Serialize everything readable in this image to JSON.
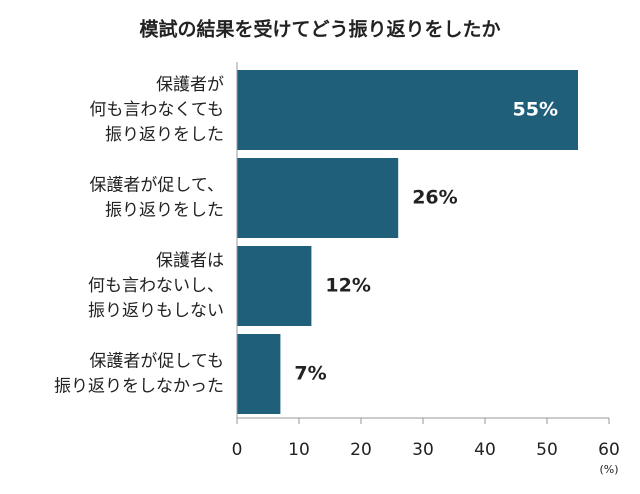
{
  "chart_data": {
    "type": "hbar",
    "title": "模試の結果を受けてどう振り返りをしたか",
    "categories": [
      [
        "保護者が",
        "何も言わなくても",
        "振り返りをした"
      ],
      [
        "保護者が促して、",
        "振り返りをした"
      ],
      [
        "保護者は",
        "何も言わないし、",
        "振り返りもしない"
      ],
      [
        "保護者が促しても",
        "振り返りをしなかった"
      ]
    ],
    "values": [
      55,
      26,
      12,
      7
    ],
    "value_labels": [
      "55%",
      "26%",
      "12%",
      "7%"
    ],
    "color": "#1f5f7a",
    "xlim": [
      0,
      60
    ],
    "xticks": [
      0,
      10,
      20,
      30,
      40,
      50,
      60
    ],
    "x_unit": "(%)"
  }
}
